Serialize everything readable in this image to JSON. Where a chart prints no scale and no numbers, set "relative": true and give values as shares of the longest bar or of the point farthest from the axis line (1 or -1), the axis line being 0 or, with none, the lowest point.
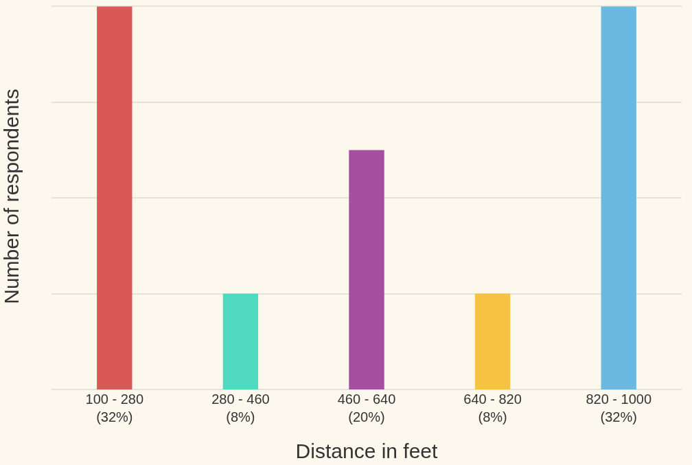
{
  "chart_data": {
    "type": "bar",
    "xlabel": "Distance in feet",
    "ylabel": "Number of respondents",
    "categories": [
      "100 - 280\n(32%)",
      "280 - 460\n(8%)",
      "460 - 640\n(20%)",
      "640 - 820\n(8%)",
      "820 - 1000\n(32%)"
    ],
    "values": [
      1,
      0.25,
      0.625,
      0.25,
      1
    ],
    "colors": [
      "#d95858",
      "#4fd9c0",
      "#a64ea0",
      "#f5c242",
      "#6bb8e0"
    ],
    "relative": true,
    "grid": "y"
  }
}
